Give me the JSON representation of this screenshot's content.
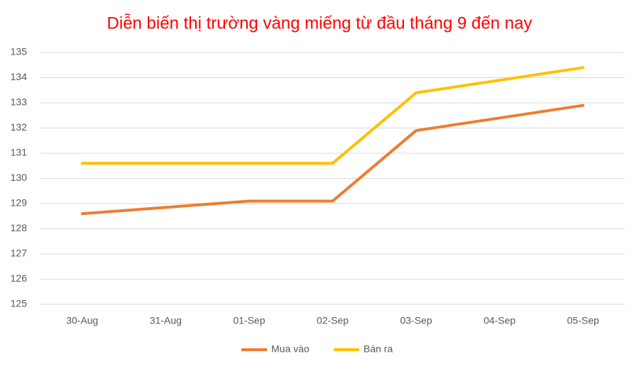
{
  "chart_data": {
    "type": "line",
    "title": "Diễn biến thị trường vàng miếng từ đầu tháng 9 đến nay",
    "categories": [
      "30-Aug",
      "31-Aug",
      "01-Sep",
      "02-Sep",
      "03-Sep",
      "04-Sep",
      "05-Sep"
    ],
    "series": [
      {
        "name": "Mua vào",
        "color": "#ed7d31",
        "values": [
          128.6,
          128.85,
          129.1,
          129.1,
          131.9,
          132.4,
          132.9
        ]
      },
      {
        "name": "Bán ra",
        "color": "#ffc000",
        "values": [
          130.6,
          130.6,
          130.6,
          130.6,
          133.4,
          133.9,
          134.4
        ]
      }
    ],
    "ylim": [
      125,
      135
    ],
    "yticks": [
      125,
      126,
      127,
      128,
      129,
      130,
      131,
      132,
      133,
      134,
      135
    ],
    "grid": true,
    "legend": "bottom"
  }
}
